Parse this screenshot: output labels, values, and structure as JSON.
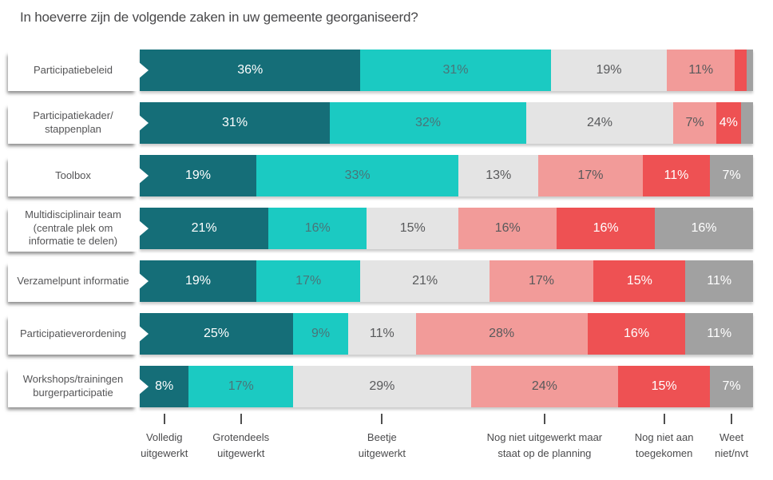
{
  "chart_data": {
    "type": "bar",
    "variant": "horizontal-stacked",
    "title": "In hoeverre zijn de volgende zaken in uw gemeente georganiseerd?",
    "unit": "%",
    "x_range": [
      0,
      100
    ],
    "grid": false,
    "legend_position": "bottom",
    "min_label_value": 4,
    "categories": [
      "Participatiebeleid",
      "Participatiekader/\nstappenplan",
      "Toolbox",
      "Multidisciplinair team\n(centrale plek om\ninformatie te delen)",
      "Verzamelpunt informatie",
      "Participatieverordening",
      "Workshops/trainingen\nburgerparticipatie"
    ],
    "series": [
      {
        "name": "Volledig uitgewerkt",
        "legend_label": "Volledig\nuitgewerkt",
        "color": "#156E78",
        "label_color": "#FFFFFF",
        "values": [
          36,
          31,
          19,
          21,
          19,
          25,
          8
        ]
      },
      {
        "name": "Grotendeels uitgewerkt",
        "legend_label": "Grotendeels\nuitgewerkt",
        "color": "#1BCAC2",
        "label_color": "#4A7478",
        "values": [
          31,
          32,
          33,
          16,
          17,
          9,
          17
        ]
      },
      {
        "name": "Beetje uitgewerkt",
        "legend_label": "Beetje\nuitgewerkt",
        "color": "#E4E4E4",
        "label_color": "#58595B",
        "values": [
          19,
          24,
          13,
          15,
          21,
          11,
          29
        ]
      },
      {
        "name": "Nog niet uitgewerkt maar staat op de planning",
        "legend_label": "Nog niet uitgewerkt maar\nstaat op de planning",
        "color": "#F29B99",
        "label_color": "#58595B",
        "values": [
          11,
          7,
          17,
          16,
          17,
          28,
          24
        ]
      },
      {
        "name": "Nog niet aan toegekomen",
        "legend_label": "Nog niet aan\ntoegekomen",
        "color": "#EE5153",
        "label_color": "#FFFFFF",
        "values": [
          2,
          4,
          11,
          16,
          15,
          16,
          15
        ]
      },
      {
        "name": "Weet niet/nvt",
        "legend_label": "Weet\nniet/nvt",
        "color": "#A1A1A1",
        "label_color": "#FFFFFF",
        "values": [
          1,
          2,
          7,
          16,
          11,
          11,
          7
        ]
      }
    ]
  }
}
